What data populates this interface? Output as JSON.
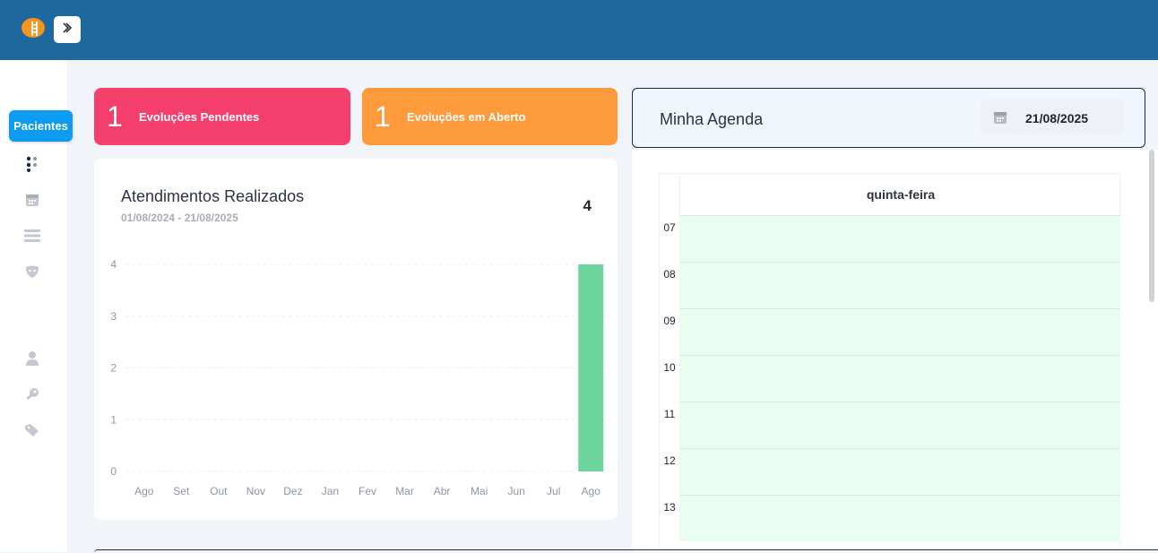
{
  "header": {
    "logo_icon": "brain-ladder-logo",
    "toggle_icon": "chevron-right-icon"
  },
  "sidebar": {
    "active_label": "Pacientes",
    "icons": [
      "patients-icon",
      "calendar-icon",
      "list-icon",
      "mask-icon",
      "user-icon",
      "key-icon",
      "tag-icon"
    ]
  },
  "cards": [
    {
      "count": "1",
      "label": "Evoluções Pendentes",
      "color": "#f43f6d"
    },
    {
      "count": "1",
      "label": "Evoluções em Aberto",
      "color": "#fd9a3c"
    }
  ],
  "attendances": {
    "title": "Atendimentos Realizados",
    "date_range": "01/08/2024 - 21/08/2025",
    "total": "4"
  },
  "chart_data": {
    "type": "bar",
    "categories": [
      "Ago",
      "Set",
      "Out",
      "Nov",
      "Dez",
      "Jan",
      "Fev",
      "Mar",
      "Abr",
      "Mai",
      "Jun",
      "Jul",
      "Ago"
    ],
    "values": [
      0,
      0,
      0,
      0,
      0,
      0,
      0,
      0,
      0,
      0,
      0,
      0,
      4
    ],
    "ylim": [
      0,
      4
    ],
    "yticks": [
      "0",
      "1",
      "2",
      "3",
      "4"
    ],
    "bar_color": "#6dd59b",
    "grid": true
  },
  "agenda": {
    "title": "Minha Agenda",
    "date": "21/08/2025",
    "day_label": "quinta-feira",
    "hours": [
      "07",
      "08",
      "09",
      "10",
      "11",
      "12",
      "13"
    ],
    "slot_color": "#e9fdf3"
  }
}
